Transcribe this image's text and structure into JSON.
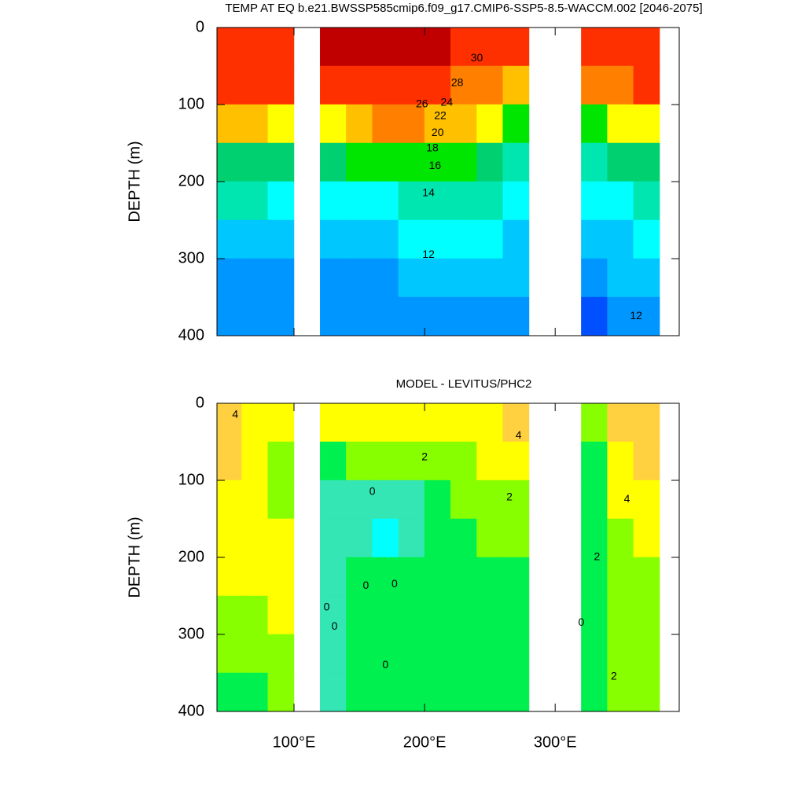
{
  "chart_data": [
    {
      "type": "contour",
      "title": "TEMP AT EQ b.e21.BWSSP585cmip6.f09_g17.CMIP6-SSP5-8.5-WACCM.002 [2046-2075]",
      "ylabel": "DEPTH (m)",
      "xlim": [
        41,
        395
      ],
      "ylim": [
        400,
        0
      ],
      "xticks": [
        100,
        200,
        300
      ],
      "xtick_labels": false,
      "yticks": [
        0,
        100,
        200,
        300,
        400
      ],
      "x": [
        50,
        70,
        90,
        110,
        130,
        150,
        170,
        190,
        210,
        230,
        250,
        270,
        290,
        310,
        330,
        350,
        370
      ],
      "y": [
        25,
        75,
        125,
        175,
        225,
        275,
        325,
        375
      ],
      "z": [
        [
          29.5,
          29.8,
          29.8,
          null,
          30.5,
          30.8,
          30.5,
          30.2,
          30,
          29.5,
          28.5,
          28,
          null,
          null,
          29.5,
          29.5,
          29.5
        ],
        [
          28.5,
          28.7,
          28.5,
          null,
          29,
          29.5,
          29.5,
          29,
          28.5,
          27.5,
          26,
          24,
          null,
          null,
          27,
          27.5,
          28
        ],
        [
          24,
          24,
          23,
          null,
          23,
          25,
          26,
          26,
          25.5,
          24,
          22,
          20,
          null,
          null,
          21,
          22,
          23
        ],
        [
          19,
          19,
          18,
          null,
          18,
          20,
          20.5,
          21,
          21,
          20.5,
          19,
          17,
          null,
          null,
          17,
          18,
          19
        ],
        [
          16,
          16,
          15.5,
          null,
          15,
          15,
          15.5,
          16,
          16.5,
          16.5,
          16,
          15,
          null,
          null,
          15,
          15.5,
          16
        ],
        [
          13,
          13,
          13,
          null,
          13,
          13,
          13.5,
          14,
          14,
          14,
          14,
          13.5,
          null,
          null,
          13,
          13.5,
          14
        ],
        [
          11.5,
          11.5,
          11.5,
          null,
          11,
          11,
          11.5,
          12,
          12,
          12,
          12,
          12,
          null,
          null,
          11,
          12,
          12.5
        ],
        [
          10.5,
          10.5,
          10.5,
          null,
          10,
          10,
          10,
          10.5,
          10.5,
          10.5,
          10.5,
          10.5,
          null,
          null,
          9.5,
          11,
          11.5
        ]
      ],
      "levels": [
        10,
        12,
        14,
        16,
        18,
        20,
        22,
        24,
        26,
        28,
        30
      ],
      "colors": [
        "#0050ff",
        "#0096ff",
        "#00c8ff",
        "#00ffff",
        "#00e6b0",
        "#00d070",
        "#00e600",
        "#ffff00",
        "#ffc000",
        "#ff8000",
        "#ff3000",
        "#c00000"
      ],
      "contour_labels": [
        {
          "text": "30",
          "x": 240,
          "depth": 40
        },
        {
          "text": "28",
          "x": 225,
          "depth": 72
        },
        {
          "text": "26",
          "x": 198,
          "depth": 100
        },
        {
          "text": "24",
          "x": 217,
          "depth": 98
        },
        {
          "text": "22",
          "x": 212,
          "depth": 115
        },
        {
          "text": "20",
          "x": 210,
          "depth": 137
        },
        {
          "text": "18",
          "x": 206,
          "depth": 157
        },
        {
          "text": "16",
          "x": 208,
          "depth": 180
        },
        {
          "text": "14",
          "x": 203,
          "depth": 215
        },
        {
          "text": "12",
          "x": 203,
          "depth": 295
        },
        {
          "text": "12",
          "x": 362,
          "depth": 375
        }
      ]
    },
    {
      "type": "contour",
      "title": "MODEL - LEVITUS/PHC2",
      "ylabel": "DEPTH (m)",
      "xlim": [
        41,
        395
      ],
      "ylim": [
        400,
        0
      ],
      "xticks": [
        {
          "value": 100,
          "label": "100°E"
        },
        {
          "value": 200,
          "label": "200°E"
        },
        {
          "value": 300,
          "label": "300°E"
        }
      ],
      "yticks": [
        0,
        100,
        200,
        300,
        400
      ],
      "x": [
        50,
        70,
        90,
        110,
        130,
        150,
        170,
        190,
        210,
        230,
        250,
        270,
        290,
        310,
        330,
        350,
        370
      ],
      "y": [
        25,
        75,
        125,
        175,
        225,
        275,
        325,
        375
      ],
      "z": [
        [
          4,
          3.5,
          3.5,
          null,
          3,
          3.5,
          3.5,
          3.5,
          3.5,
          3.5,
          3.5,
          4,
          null,
          null,
          2,
          4,
          4.5
        ],
        [
          4.5,
          3.5,
          2.5,
          null,
          1.5,
          2,
          2,
          2,
          2,
          2.5,
          3.5,
          3.5,
          null,
          null,
          1.5,
          3.5,
          4
        ],
        [
          3.5,
          3,
          2.5,
          null,
          0.5,
          0.5,
          0,
          0.5,
          1.5,
          2,
          2,
          2.5,
          null,
          null,
          1.5,
          3,
          3.5
        ],
        [
          3,
          3.5,
          3.5,
          null,
          0.5,
          0.5,
          -0.5,
          0.5,
          1.5,
          1.5,
          2,
          2,
          null,
          null,
          1.5,
          2,
          3
        ],
        [
          3,
          3.5,
          3.5,
          null,
          0.5,
          1,
          1,
          1,
          1.5,
          1.5,
          1.5,
          1.5,
          null,
          null,
          1.5,
          2,
          2.5
        ],
        [
          2.5,
          2.5,
          3,
          null,
          0.5,
          1,
          1,
          1,
          1.5,
          1.5,
          1.5,
          1.5,
          null,
          null,
          1.5,
          2,
          2.5
        ],
        [
          2,
          2,
          2.5,
          null,
          0.5,
          1,
          1,
          1,
          1,
          1,
          1,
          1,
          null,
          null,
          1,
          2.5,
          2.5
        ],
        [
          1.5,
          1.5,
          2,
          null,
          0.5,
          1,
          1,
          1,
          1,
          1,
          1,
          1,
          null,
          null,
          1,
          2.5,
          2.5
        ]
      ],
      "levels": [
        0,
        1,
        2,
        3,
        4,
        5
      ],
      "colors": [
        "#00ffff",
        "#33e6b3",
        "#00f050",
        "#88ff00",
        "#ffff00",
        "#ffd040",
        "#f0a030"
      ],
      "contour_labels": [
        {
          "text": "4",
          "x": 55,
          "depth": 15
        },
        {
          "text": "2",
          "x": 200,
          "depth": 70
        },
        {
          "text": "0",
          "x": 160,
          "depth": 115
        },
        {
          "text": "2",
          "x": 265,
          "depth": 122
        },
        {
          "text": "4",
          "x": 272,
          "depth": 42
        },
        {
          "text": "4",
          "x": 355,
          "depth": 125
        },
        {
          "text": "2",
          "x": 332,
          "depth": 200
        },
        {
          "text": "0",
          "x": 125,
          "depth": 265
        },
        {
          "text": "0",
          "x": 131,
          "depth": 290
        },
        {
          "text": "0",
          "x": 155,
          "depth": 237
        },
        {
          "text": "0",
          "x": 177,
          "depth": 235
        },
        {
          "text": "0",
          "x": 170,
          "depth": 340
        },
        {
          "text": "0",
          "x": 320,
          "depth": 285
        },
        {
          "text": "2",
          "x": 345,
          "depth": 355
        }
      ]
    }
  ]
}
